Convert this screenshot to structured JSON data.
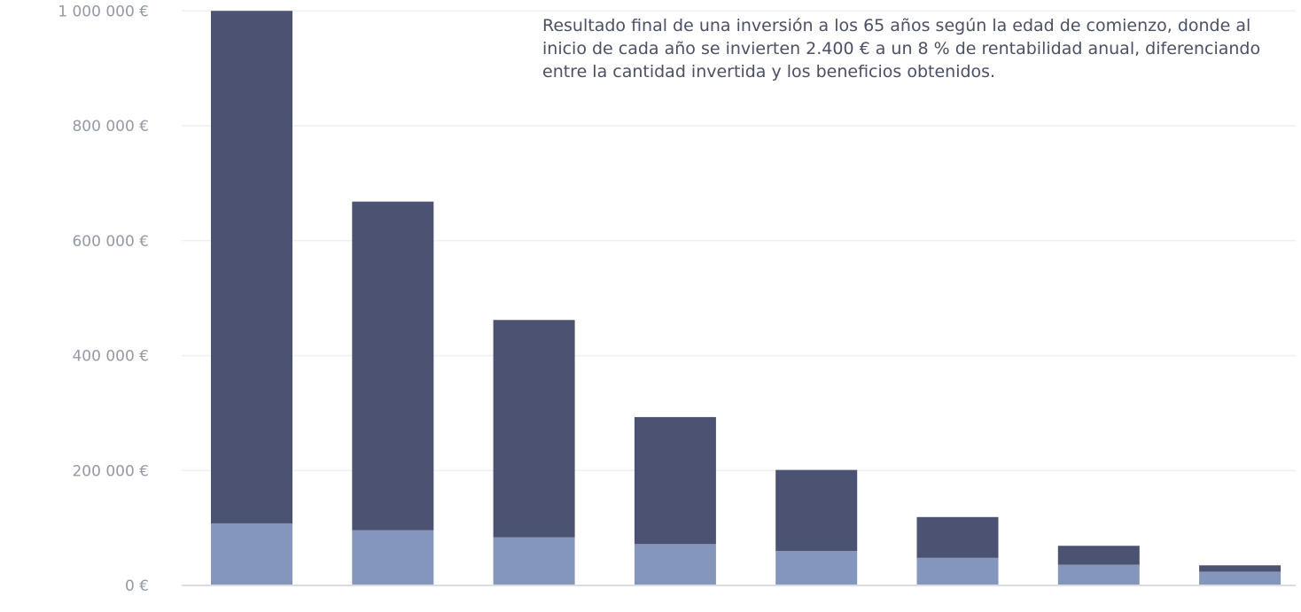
{
  "chart_data": {
    "type": "bar",
    "stacked": true,
    "annotation": "Resultado final de una inversión a los 65 años según la edad de comienzo, donde al inicio de cada año se invierten 2.400 € a un 8 % de rentabilidad anual, diferenciando entre la cantidad invertida y los beneficios obtenidos.",
    "categories": [
      "",
      "",
      "",
      "",
      "",
      "",
      "",
      ""
    ],
    "series": [
      {
        "values": [
          108000,
          96000,
          84000,
          72000,
          60000,
          48000,
          36000,
          24000
        ],
        "color": "#8596bc"
      },
      {
        "values": [
          892000,
          572000,
          378000,
          221000,
          141000,
          71000,
          33000,
          11000
        ],
        "color": "#4c5372"
      }
    ],
    "ylim": [
      0,
      1000000
    ],
    "yticks": [
      {
        "value": 0,
        "label": "0 €"
      },
      {
        "value": 200000,
        "label": "200 000 €"
      },
      {
        "value": 400000,
        "label": "400 000 €"
      },
      {
        "value": 600000,
        "label": "600 000 €"
      },
      {
        "value": 800000,
        "label": "800 000 €"
      },
      {
        "value": 1000000,
        "label": "1 000 000 €"
      }
    ],
    "grid": true,
    "legend": "none"
  }
}
